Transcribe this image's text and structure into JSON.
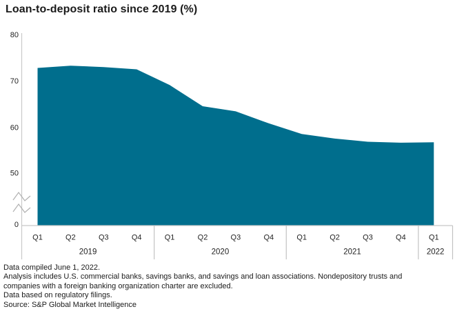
{
  "title": "Loan-to-deposit ratio since 2019 (%)",
  "colors": {
    "area": "#006E8D",
    "axis": "#c8c8c8",
    "separator": "#c2c2c2",
    "break_mark": "#b0b0b0",
    "tick_text": "#222222",
    "text": "#1a1a1a"
  },
  "chart_data": {
    "type": "area",
    "title": "Loan-to-deposit ratio since 2019 (%)",
    "x": [
      "Q1 2019",
      "Q2 2019",
      "Q3 2019",
      "Q4 2019",
      "Q1 2020",
      "Q2 2020",
      "Q3 2020",
      "Q4 2020",
      "Q1 2021",
      "Q2 2021",
      "Q3 2021",
      "Q4 2021",
      "Q1 2022"
    ],
    "values": [
      72.9,
      73.4,
      73.1,
      72.6,
      69.2,
      64.6,
      63.5,
      60.9,
      58.6,
      57.6,
      56.9,
      56.7,
      56.8
    ],
    "xlabel": "",
    "ylabel": "",
    "unit": "%",
    "ytick_labels": [
      "80",
      "70",
      "60",
      "50",
      "0"
    ],
    "ytick_values": [
      80,
      70,
      60,
      50,
      0
    ],
    "axis_break_between": [
      50,
      0
    ],
    "ylim_top_segment": [
      50,
      80
    ],
    "grid": false,
    "legend": "none",
    "year_groups": [
      {
        "label": "2019",
        "quarters": 4
      },
      {
        "label": "2020",
        "quarters": 4
      },
      {
        "label": "2021",
        "quarters": 4
      },
      {
        "label": "2022",
        "quarters": 1
      }
    ]
  },
  "footnotes": [
    "Data compiled June 1, 2022.",
    "Analysis includes U.S. commercial banks, savings banks, and savings and loan associations. Nondepository trusts and",
    "companies with a foreign banking organization charter are excluded.",
    "Data based on regulatory filings.",
    "Source: S&P Global Market Intelligence"
  ]
}
